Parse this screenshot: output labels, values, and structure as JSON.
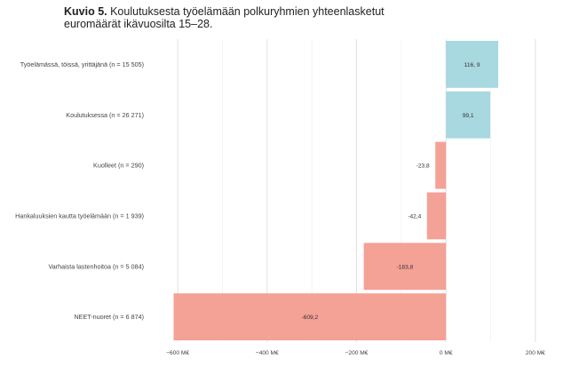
{
  "title": {
    "bold": "Kuvio 5.",
    "line1": " Koulutuksesta työelämään  polkuryhmien yhteenlasketut",
    "line2": "euromäärät ikävuosilta 15–28."
  },
  "chart_data": {
    "type": "bar",
    "orientation": "horizontal",
    "categories": [
      "Työelämässä, töissä, yrittäjänä  (n =  15  505)",
      "Koulutuksessa (n = 26 271)",
      "Kuolleet (n = 290)",
      "Hankaluuksien  kautta  työelämään  (n =  1  939)",
      "Varhaista  lastenhoitoa  (n =  5  084)",
      "NEET-nuoret   (n =  6  874)"
    ],
    "values": [
      116.9,
      99.1,
      -23.8,
      -42.4,
      -183.8,
      -609.2
    ],
    "value_labels": [
      "116, 9",
      "99,1",
      "-23,8",
      "-42,4",
      "-183,8",
      "-609,2"
    ],
    "colors": [
      "#a8d8e0",
      "#a8d8e0",
      "#f4a196",
      "#f4a196",
      "#f4a196",
      "#f4a196"
    ],
    "xlim": [
      -640,
      240
    ],
    "xticks": [
      -600,
      -400,
      -200,
      0,
      200
    ],
    "xtick_labels": [
      "−600 M€",
      "−400 M€",
      "−200 M€",
      "0 M€",
      "200 M€"
    ],
    "grid": true,
    "colors_meaning": {
      "positive": "#a8d8e0",
      "negative": "#f4a196"
    }
  }
}
